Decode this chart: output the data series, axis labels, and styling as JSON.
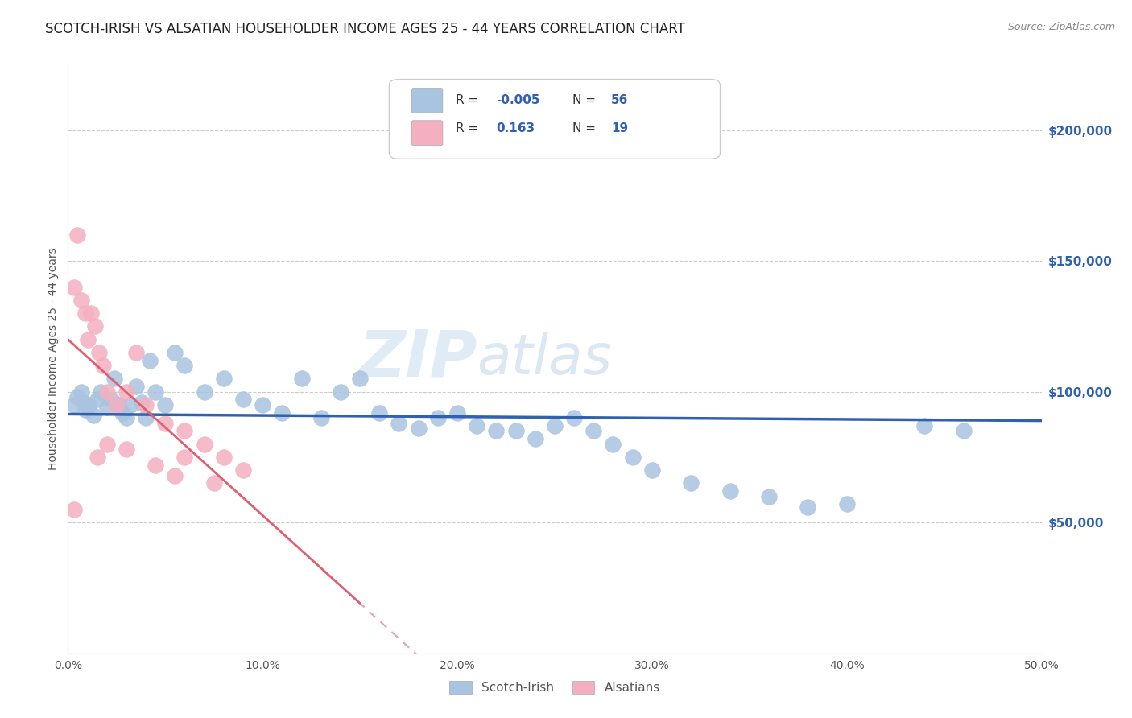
{
  "title": "SCOTCH-IRISH VS ALSATIAN HOUSEHOLDER INCOME AGES 25 - 44 YEARS CORRELATION CHART",
  "source": "Source: ZipAtlas.com",
  "xlabel_ticks": [
    "0.0%",
    "10.0%",
    "20.0%",
    "30.0%",
    "40.0%",
    "50.0%"
  ],
  "xlabel_vals": [
    0,
    10,
    20,
    30,
    40,
    50
  ],
  "ylabel": "Householder Income Ages 25 - 44 years",
  "ylabel_ticks": [
    "$50,000",
    "$100,000",
    "$150,000",
    "$200,000"
  ],
  "ylabel_vals": [
    50000,
    100000,
    150000,
    200000
  ],
  "ylim": [
    0,
    225000
  ],
  "xlim": [
    0,
    50
  ],
  "watermark_zip": "ZIP",
  "watermark_atlas": "atlas",
  "scotch_irish_color": "#a8c4e0",
  "alsatian_color": "#f4b0c0",
  "scotch_irish_R": -0.005,
  "scotch_irish_N": 56,
  "alsatian_R": 0.163,
  "alsatian_N": 19,
  "trend_blue_color": "#3060b0",
  "trend_pink_solid_color": "#e06070",
  "trend_pink_dashed_color": "#e8a0b0",
  "legend_blue_color": "#a8c4e0",
  "legend_pink_color": "#f4b0c0",
  "grid_color": "#cccccc",
  "background_color": "#ffffff",
  "title_fontsize": 12,
  "axis_label_fontsize": 10,
  "tick_fontsize": 10,
  "source_fontsize": 9,
  "scotch_irish_x": [
    0.3,
    0.5,
    0.7,
    0.8,
    0.9,
    1.0,
    1.1,
    1.3,
    1.5,
    1.7,
    2.0,
    2.2,
    2.4,
    2.6,
    2.8,
    3.0,
    3.2,
    3.5,
    3.8,
    4.0,
    4.2,
    4.5,
    5.0,
    5.5,
    6.0,
    7.0,
    8.0,
    9.0,
    10.0,
    11.0,
    12.0,
    13.0,
    14.0,
    15.0,
    16.0,
    17.0,
    18.0,
    19.0,
    20.0,
    21.0,
    22.0,
    23.0,
    24.0,
    25.0,
    26.0,
    27.0,
    28.0,
    29.0,
    30.0,
    32.0,
    34.0,
    36.0,
    38.0,
    40.0,
    44.0,
    46.0
  ],
  "scotch_irish_y": [
    95000,
    98000,
    100000,
    96000,
    93000,
    94000,
    95000,
    91000,
    97000,
    100000,
    94000,
    97000,
    105000,
    95000,
    92000,
    90000,
    95000,
    102000,
    96000,
    90000,
    112000,
    100000,
    95000,
    115000,
    110000,
    100000,
    105000,
    97000,
    95000,
    92000,
    105000,
    90000,
    100000,
    105000,
    92000,
    88000,
    86000,
    90000,
    92000,
    87000,
    85000,
    85000,
    82000,
    87000,
    90000,
    85000,
    80000,
    75000,
    70000,
    65000,
    62000,
    60000,
    56000,
    57000,
    87000,
    85000
  ],
  "alsatian_x": [
    0.3,
    0.5,
    0.7,
    0.9,
    1.0,
    1.2,
    1.4,
    1.6,
    1.8,
    2.0,
    2.5,
    3.0,
    3.5,
    4.0,
    5.0,
    6.0,
    7.0,
    8.0,
    9.0
  ],
  "alsatian_y": [
    140000,
    160000,
    135000,
    130000,
    120000,
    130000,
    125000,
    115000,
    110000,
    100000,
    95000,
    100000,
    115000,
    95000,
    88000,
    85000,
    80000,
    75000,
    70000
  ],
  "alsatian_extra_x": [
    0.3,
    1.5,
    2.0,
    3.0,
    4.5,
    5.5,
    6.0,
    7.5
  ],
  "alsatian_extra_y": [
    55000,
    75000,
    80000,
    78000,
    72000,
    68000,
    75000,
    65000
  ]
}
